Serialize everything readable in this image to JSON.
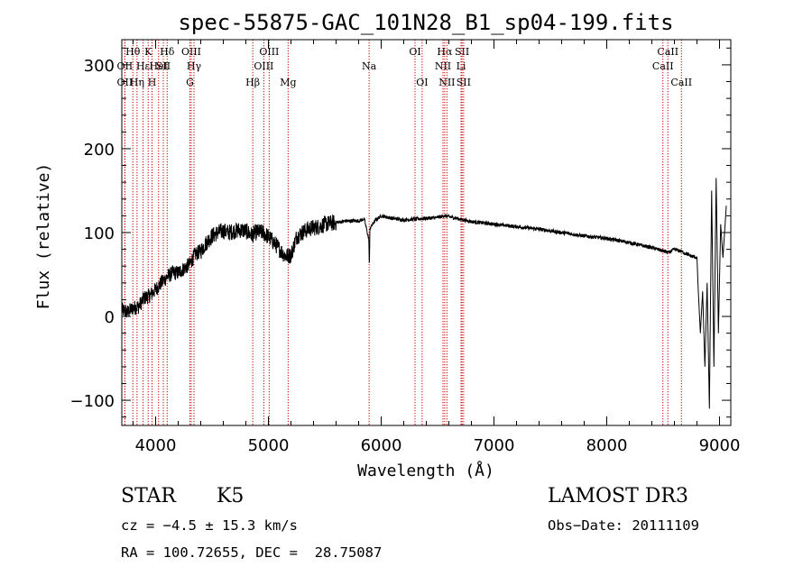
{
  "chart_data": {
    "type": "line",
    "title": "spec-55875-GAC_101N28_B1_sp04-199.fits",
    "xlabel": "Wavelength (Å)",
    "ylabel": "Flux (relative)",
    "xlim": [
      3700,
      9100
    ],
    "ylim": [
      -130,
      330
    ],
    "xticks": [
      4000,
      5000,
      6000,
      7000,
      8000,
      9000
    ],
    "yticks": [
      -100,
      0,
      100,
      200,
      300
    ],
    "xtick_labels": [
      "4000",
      "5000",
      "6000",
      "7000",
      "8000",
      "9000"
    ],
    "ytick_labels": [
      "−100",
      "0",
      "100",
      "200",
      "300"
    ],
    "series": [
      {
        "name": "flux",
        "x": [
          3700,
          3750,
          3800,
          3850,
          3900,
          3950,
          4000,
          4050,
          4100,
          4150,
          4200,
          4250,
          4300,
          4350,
          4400,
          4450,
          4500,
          4550,
          4600,
          4650,
          4700,
          4750,
          4800,
          4850,
          4900,
          4950,
          5000,
          5050,
          5100,
          5150,
          5200,
          5250,
          5300,
          5350,
          5400,
          5450,
          5500,
          5600,
          5700,
          5800,
          5850,
          5890,
          5895,
          5900,
          5950,
          6000,
          6100,
          6200,
          6300,
          6400,
          6500,
          6560,
          6600,
          6700,
          6800,
          7000,
          7200,
          7400,
          7600,
          7800,
          8000,
          8200,
          8400,
          8500,
          8550,
          8600,
          8650,
          8700,
          8750,
          8800,
          8810,
          8830,
          8850,
          8870,
          8890,
          8910,
          8930,
          8950,
          8970,
          8990,
          9010,
          9030,
          9060
        ],
        "values": [
          8,
          5,
          10,
          12,
          22,
          25,
          32,
          40,
          47,
          52,
          52,
          57,
          62,
          74,
          78,
          88,
          96,
          100,
          102,
          100,
          102,
          103,
          102,
          97,
          101,
          100,
          95,
          88,
          80,
          72,
          73,
          95,
          100,
          104,
          106,
          107,
          110,
          112,
          114,
          114,
          116,
          92,
          57,
          105,
          115,
          120,
          117,
          115,
          116,
          117,
          118,
          120,
          119,
          116,
          113,
          110,
          107,
          104,
          100,
          96,
          93,
          88,
          82,
          78,
          76,
          80,
          78,
          75,
          72,
          70,
          35,
          -20,
          30,
          -60,
          40,
          -110,
          150,
          -60,
          165,
          -20,
          110,
          70,
          132
        ]
      }
    ],
    "line_markers": [
      {
        "label": "Hθ",
        "x": 3798,
        "row": 0
      },
      {
        "label": "K",
        "x": 3934,
        "row": 0
      },
      {
        "label": "Hδ",
        "x": 4102,
        "row": 0
      },
      {
        "label": "OIII",
        "x": 4316,
        "row": 0
      },
      {
        "label": "OIII",
        "x": 5007,
        "row": 0
      },
      {
        "label": "OI",
        "x": 6300,
        "row": 0
      },
      {
        "label": "Hα",
        "x": 6563,
        "row": 0
      },
      {
        "label": "SII",
        "x": 6717,
        "row": 0
      },
      {
        "label": "CaII",
        "x": 8542,
        "row": 0
      },
      {
        "label": "OII",
        "x": 3727,
        "row": 1
      },
      {
        "label": "Hε",
        "x": 3889,
        "row": 1
      },
      {
        "label": "SII",
        "x": 4068,
        "row": 1
      },
      {
        "label": "Hγ",
        "x": 4340,
        "row": 1
      },
      {
        "label": "OIII",
        "x": 4959,
        "row": 1
      },
      {
        "label": "Na",
        "x": 5893,
        "row": 1
      },
      {
        "label": "NII",
        "x": 6548,
        "row": 1
      },
      {
        "label": "Li",
        "x": 6708,
        "row": 1
      },
      {
        "label": "CaII",
        "x": 8498,
        "row": 1
      },
      {
        "label": "OII",
        "x": 3727,
        "row": 2
      },
      {
        "label": "Hη",
        "x": 3835,
        "row": 2
      },
      {
        "label": "H",
        "x": 3968,
        "row": 2
      },
      {
        "label": "G",
        "x": 4304,
        "row": 2
      },
      {
        "label": "Hβ",
        "x": 4861,
        "row": 2
      },
      {
        "label": "Mg",
        "x": 5175,
        "row": 2
      },
      {
        "label": "OI",
        "x": 6363,
        "row": 2
      },
      {
        "label": "NII",
        "x": 6583,
        "row": 2
      },
      {
        "label": "SII",
        "x": 6731,
        "row": 2
      },
      {
        "label": "CaII",
        "x": 8662,
        "row": 2
      },
      {
        "label": "HeI",
        "x": 4026,
        "row": 1
      }
    ],
    "colors": {
      "spectrum": "#000000",
      "markers": "#cc0000",
      "axes": "#000000"
    }
  },
  "info": {
    "class_label": "STAR",
    "subclass": "K5",
    "survey": "LAMOST DR3",
    "cz": "cz = −4.5 ± 15.3 km/s",
    "obs_date": "Obs−Date: 20111109",
    "radec": "RA = 100.72655, DEC =  28.75087"
  }
}
